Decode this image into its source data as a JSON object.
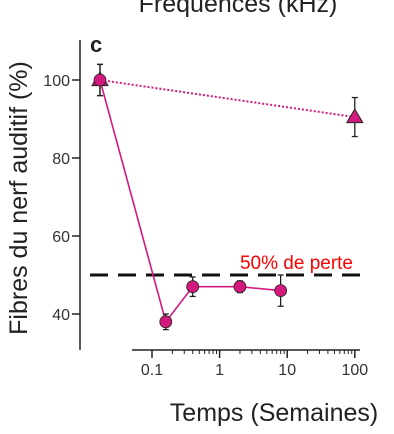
{
  "chart_data": {
    "type": "line",
    "panel_label": "c",
    "top_label": "Fréquences (kHz)",
    "ylabel": "Fibres du nerf auditif (%)",
    "xlabel": "Temps (Semaines)",
    "x_scale": "log",
    "x_ticks": [
      {
        "value": 0.1,
        "label": "0.1"
      },
      {
        "value": 1,
        "label": "1"
      },
      {
        "value": 10,
        "label": "10"
      },
      {
        "value": 100,
        "label": "100"
      }
    ],
    "y_ticks": [
      {
        "value": 100,
        "label": "100"
      },
      {
        "value": 80,
        "label": "80"
      },
      {
        "value": 60,
        "label": "60"
      },
      {
        "value": 40,
        "label": "40"
      }
    ],
    "ylim": [
      35,
      104
    ],
    "series": [
      {
        "style": "dotted",
        "marker": "triangle",
        "color": "#d4197e",
        "points": [
          {
            "x": 0.017,
            "y": 100,
            "err": 4
          },
          {
            "x": 100,
            "y": 90.5,
            "err": 5
          }
        ]
      },
      {
        "style": "solid",
        "marker": "circle",
        "color": "#d4197e",
        "points": [
          {
            "x": 0.017,
            "y": 100,
            "err": 4
          },
          {
            "x": 0.16,
            "y": 38,
            "err": 2
          },
          {
            "x": 0.4,
            "y": 47,
            "err": 2.5
          },
          {
            "x": 2,
            "y": 47,
            "err": 1.5
          },
          {
            "x": 8,
            "y": 46,
            "err": 4
          }
        ]
      }
    ],
    "reference_line": {
      "y": 50,
      "label": "50% de perte",
      "label_color": "#ff0000",
      "style": "dashed"
    }
  }
}
